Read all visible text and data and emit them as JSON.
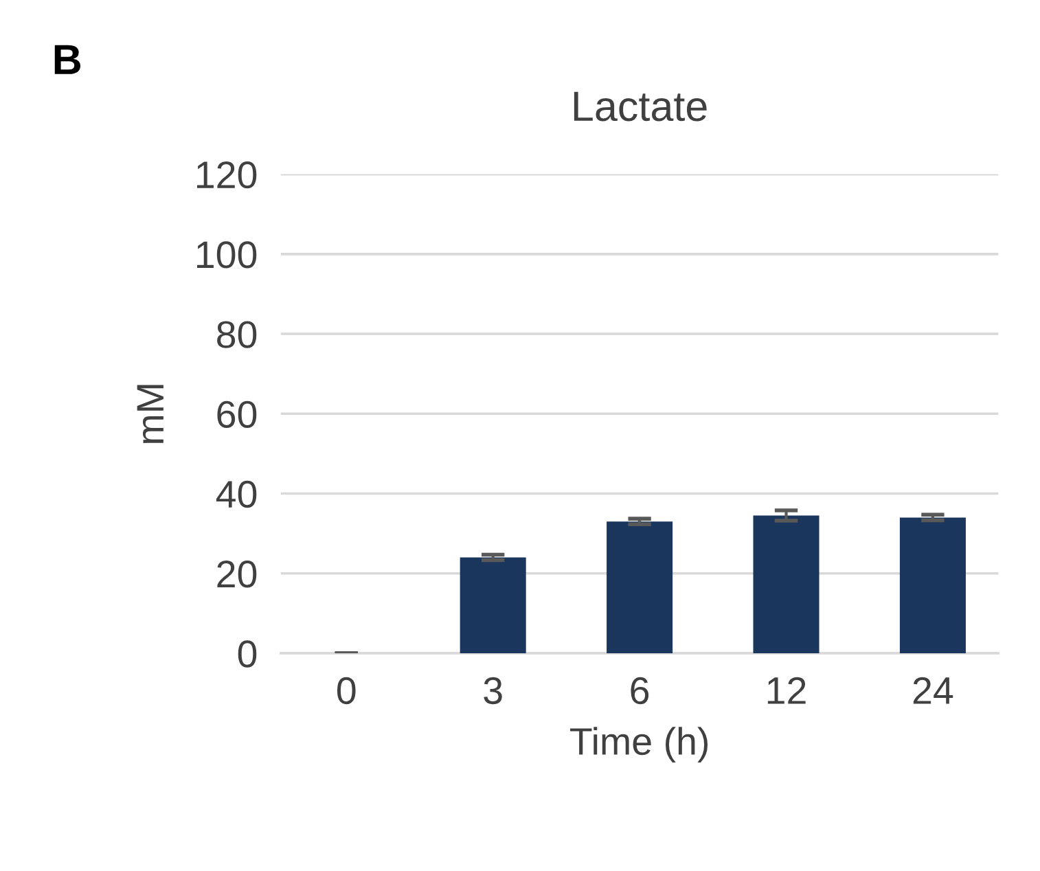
{
  "chart_data": {
    "type": "bar",
    "title": "Lactate",
    "ylabel": "mM",
    "xlabel": "Time (h)",
    "categories": [
      "0",
      "3",
      "6",
      "12",
      "24"
    ],
    "values": [
      0,
      24,
      33,
      34.5,
      34
    ],
    "errors": [
      0,
      0.7,
      0.7,
      1.3,
      0.7
    ],
    "color": "#1b365d",
    "ylim": [
      0,
      120
    ],
    "yticks": [
      0,
      20,
      40,
      60,
      80,
      100,
      120
    ],
    "grid": "y",
    "annotations": [
      "B"
    ]
  }
}
